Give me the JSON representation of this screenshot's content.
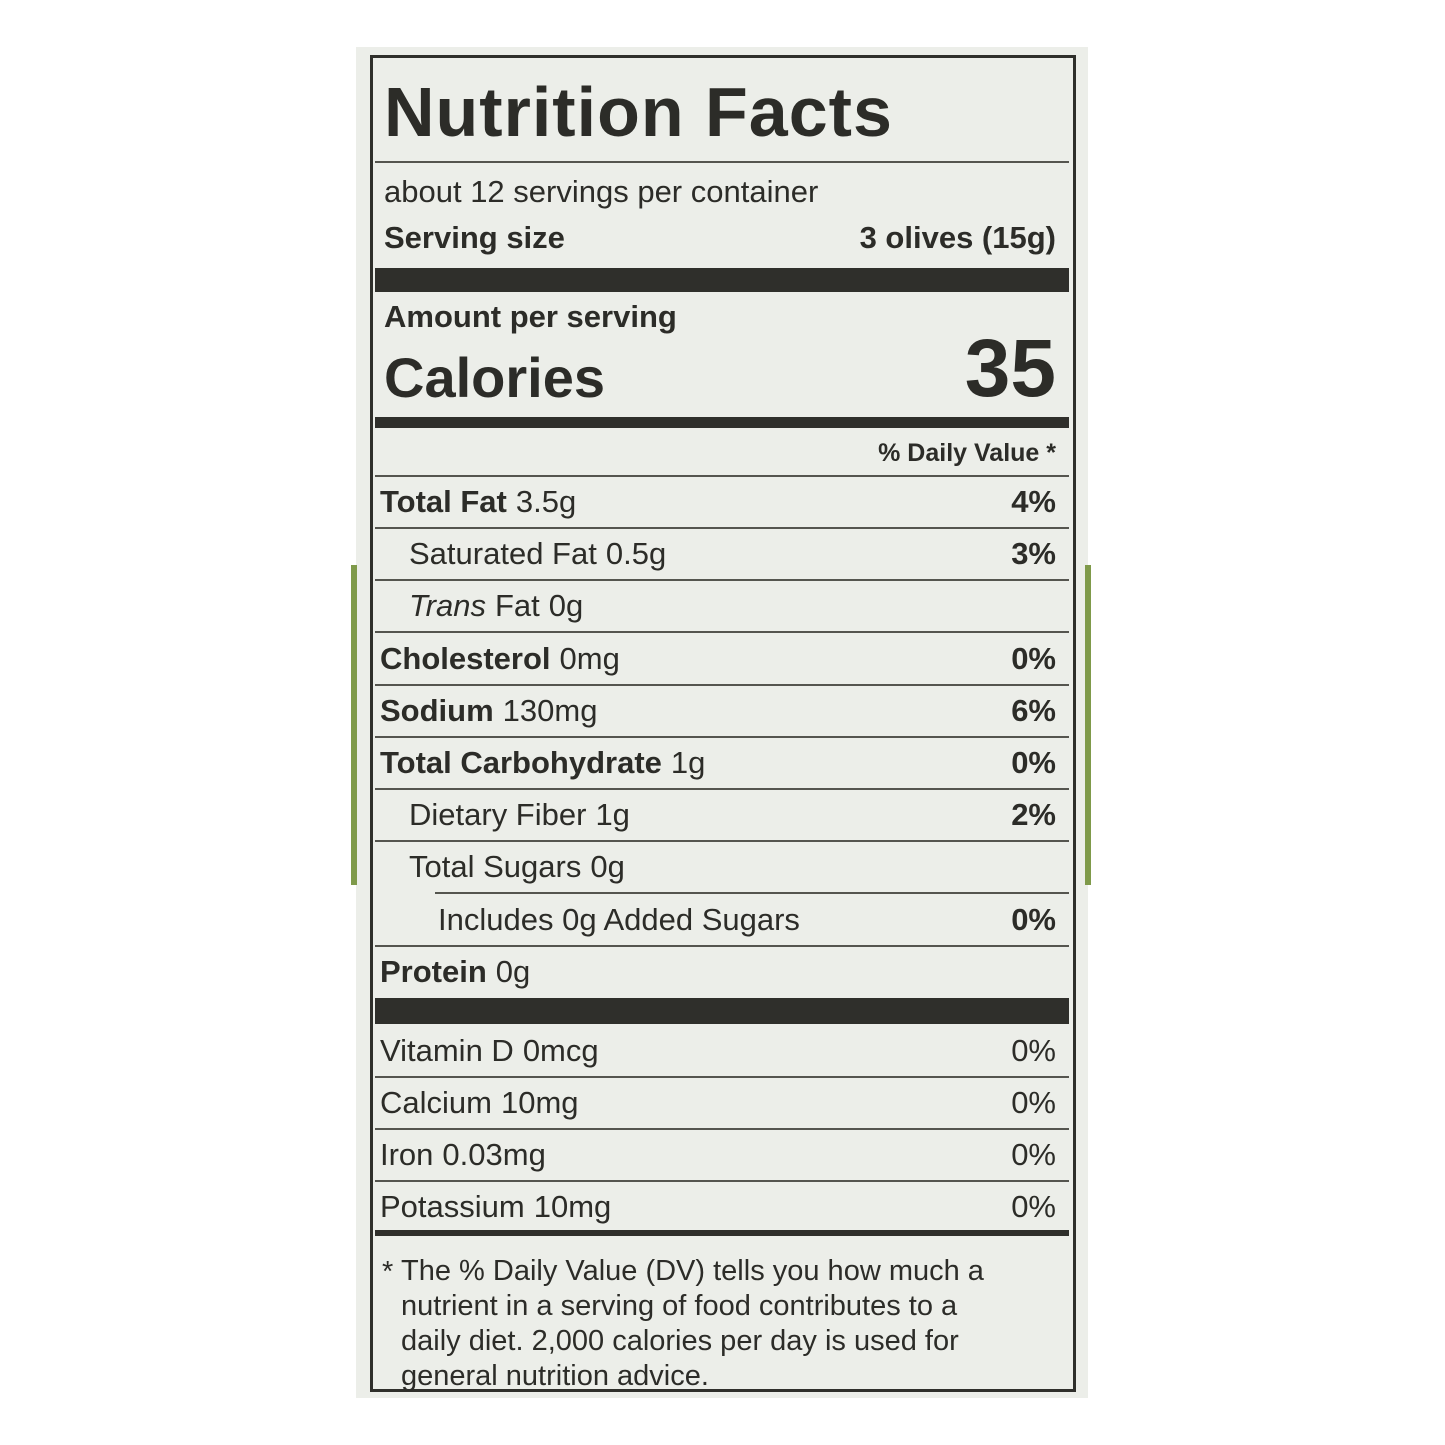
{
  "title": "Nutrition Facts",
  "servings_per_container": "about 12 servings per container",
  "serving_size": {
    "label": "Serving size",
    "value": "3 olives (15g)"
  },
  "amount_per_serving": "Amount per serving",
  "calories": {
    "label": "Calories",
    "value": 35
  },
  "daily_value_header": "% Daily Value *",
  "nutrients": [
    {
      "name": "Total Fat",
      "amount": "3.5g",
      "dv": "4%",
      "bold": true,
      "indent": 0
    },
    {
      "name": "Saturated Fat",
      "amount": "0.5g",
      "dv": "3%",
      "bold": false,
      "indent": 1
    },
    {
      "italic": "Trans",
      "name": "Fat",
      "amount": "0g",
      "bold": false,
      "indent": 1
    },
    {
      "name": "Cholesterol",
      "amount": "0mg",
      "dv": "0%",
      "bold": true,
      "indent": 0
    },
    {
      "name": "Sodium",
      "amount": "130mg",
      "dv": "6%",
      "bold": true,
      "indent": 0
    },
    {
      "name": "Total Carbohydrate",
      "amount": "1g",
      "dv": "0%",
      "bold": true,
      "indent": 0
    },
    {
      "name": "Dietary Fiber",
      "amount": "1g",
      "dv": "2%",
      "bold": false,
      "indent": 1
    },
    {
      "name": "Total Sugars",
      "amount": "0g",
      "bold": false,
      "indent": 1
    },
    {
      "name": "Includes 0g Added Sugars",
      "dv": "0%",
      "bold": false,
      "indent": 2
    },
    {
      "name": "Protein",
      "amount": "0g",
      "bold": true,
      "indent": 0
    }
  ],
  "vitamins": [
    {
      "name": "Vitamin D",
      "amount": "0mcg",
      "dv": "0%"
    },
    {
      "name": "Calcium",
      "amount": "10mg",
      "dv": "0%"
    },
    {
      "name": "Iron",
      "amount": "0.03mg",
      "dv": "0%"
    },
    {
      "name": "Potassium",
      "amount": "10mg",
      "dv": "0%"
    }
  ],
  "footnote_marker": "*",
  "footnote": [
    "The % Daily Value (DV) tells you how much a",
    "nutrient in a serving of food contributes to a",
    "daily diet. 2,000 calories per day is used for",
    "general nutrition advice."
  ]
}
